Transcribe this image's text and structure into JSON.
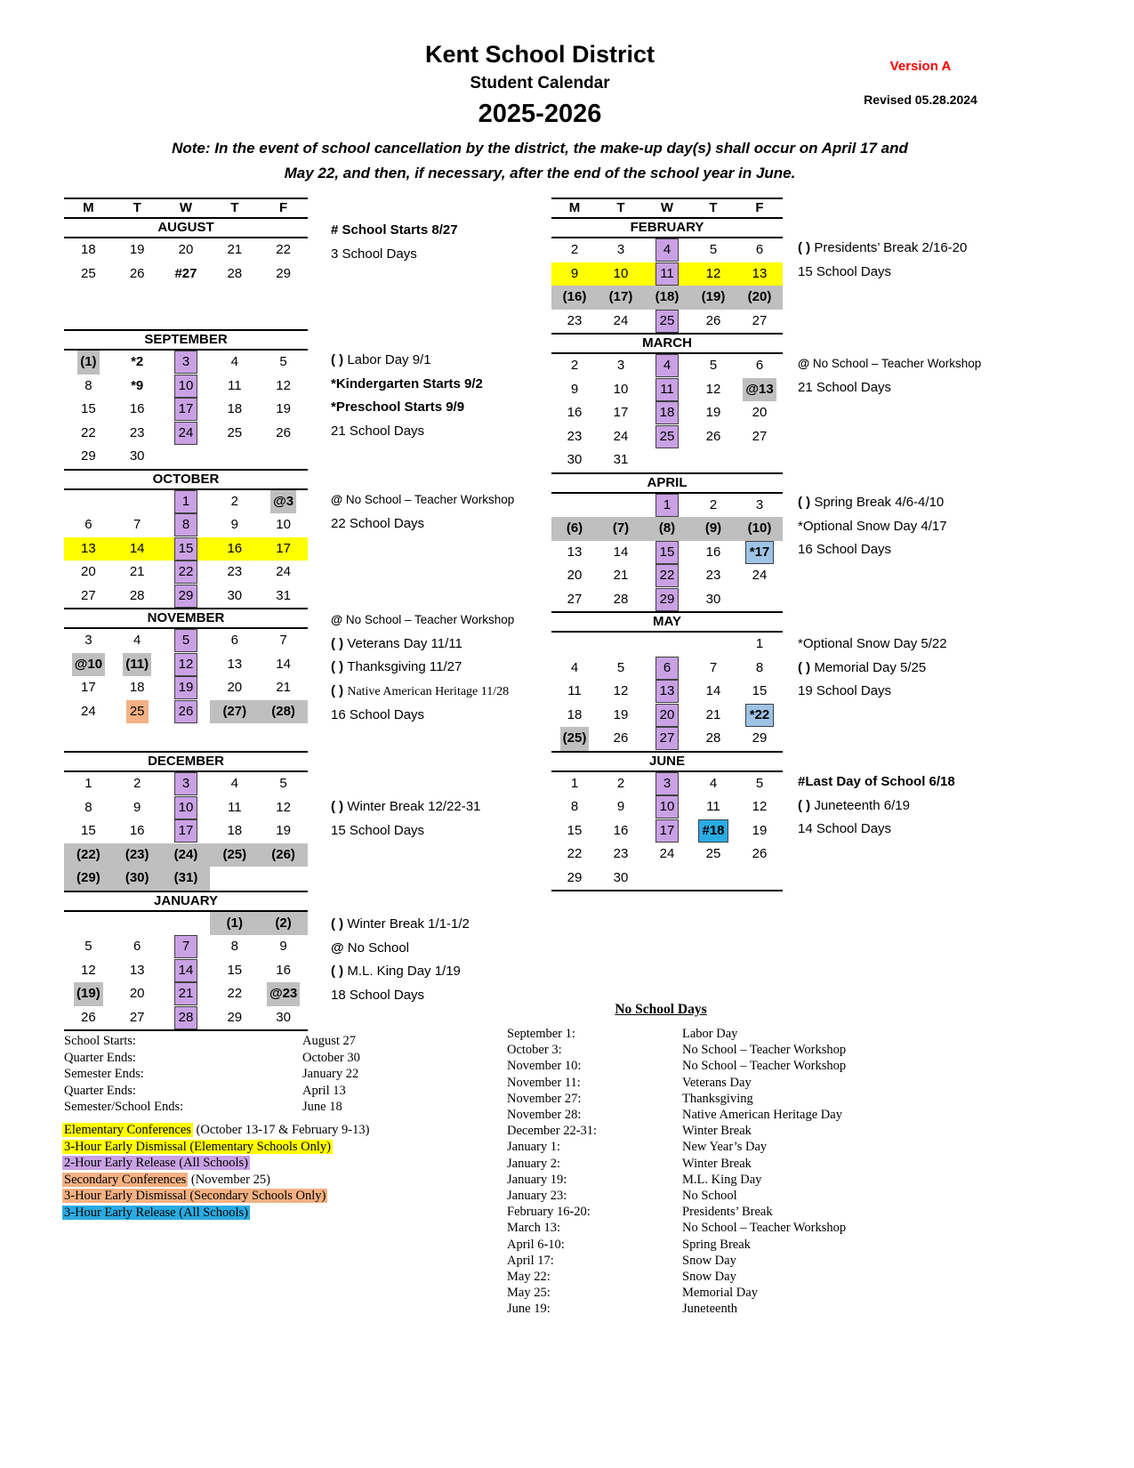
{
  "header": {
    "district": "Kent School District",
    "subtitle": "Student Calendar",
    "year": "2025-2026",
    "version": "Version A",
    "revised": "Revised 05.28.2024",
    "note_line1": "Note: In the event of school cancellation by the district, the make-up day(s) shall occur on April 17 and",
    "note_line2": "May 22, and then, if necessary, after the end of the school year in June."
  },
  "colors": {
    "purple_2hr_early_release": "#C9A1E4",
    "yellow_elementary_conferences": "#FFFF00",
    "gray_no_school": "#BFBFBF",
    "orange_secondary_conferences": "#F4B183",
    "lightblue_3hr_early_release_snowday": "#9DC3E6",
    "blue_3hr_early_release": "#29ABE2",
    "version_red": "#FF0000"
  },
  "weekday_headers": [
    "M",
    "T",
    "W",
    "T",
    "F"
  ],
  "months": [
    {
      "id": "august",
      "name": "AUGUST",
      "rows": [
        [
          "18",
          "19",
          "20",
          "21",
          "22"
        ],
        [
          "25",
          "26",
          {
            "t": "#27",
            "c": "bold"
          },
          "28",
          "29"
        ]
      ]
    },
    {
      "id": "september",
      "name": "SEPTEMBER",
      "rows": [
        [
          {
            "t": "(1)",
            "c": "gray"
          },
          {
            "t": "*2",
            "c": "bold"
          },
          {
            "t": "3",
            "c": "purple"
          },
          "4",
          "5"
        ],
        [
          "8",
          {
            "t": "*9",
            "c": "bold"
          },
          {
            "t": "10",
            "c": "purple"
          },
          "11",
          "12"
        ],
        [
          "15",
          "16",
          {
            "t": "17",
            "c": "purple"
          },
          "18",
          "19"
        ],
        [
          "22",
          "23",
          {
            "t": "24",
            "c": "purple"
          },
          "25",
          "26"
        ],
        [
          "29",
          "30",
          null,
          null,
          null
        ]
      ]
    },
    {
      "id": "october",
      "name": "OCTOBER",
      "rows": [
        [
          null,
          null,
          {
            "t": "1",
            "c": "purple"
          },
          "2",
          {
            "t": "@3",
            "c": "gray"
          }
        ],
        [
          "6",
          "7",
          {
            "t": "8",
            "c": "purple"
          },
          "9",
          "10"
        ],
        {
          "rc": "yellow",
          "cells": [
            "13",
            "14",
            {
              "t": "15",
              "c": "purple"
            },
            "16",
            "17"
          ]
        },
        [
          "20",
          "21",
          {
            "t": "22",
            "c": "purple"
          },
          "23",
          "24"
        ],
        [
          "27",
          "28",
          {
            "t": "29",
            "c": "purple"
          },
          "30",
          "31"
        ]
      ]
    },
    {
      "id": "november",
      "name": "NOVEMBER",
      "rows": [
        [
          "3",
          "4",
          {
            "t": "5",
            "c": "purple"
          },
          "6",
          "7"
        ],
        [
          {
            "t": "@10",
            "c": "gray"
          },
          {
            "t": "(11)",
            "c": "gray"
          },
          {
            "t": "12",
            "c": "purple"
          },
          "13",
          "14"
        ],
        [
          "17",
          "18",
          {
            "t": "19",
            "c": "purple"
          },
          "20",
          "21"
        ],
        [
          "24",
          {
            "t": "25",
            "c": "orange"
          },
          {
            "t": "26",
            "c": "purple"
          },
          {
            "t": "(27)",
            "c": "gfill"
          },
          {
            "t": "(28)",
            "c": "gfill"
          }
        ]
      ]
    },
    {
      "id": "december",
      "name": "DECEMBER",
      "rows": [
        [
          "1",
          "2",
          {
            "t": "3",
            "c": "purple"
          },
          "4",
          "5"
        ],
        [
          "8",
          "9",
          {
            "t": "10",
            "c": "purple"
          },
          "11",
          "12"
        ],
        [
          "15",
          "16",
          {
            "t": "17",
            "c": "purple"
          },
          "18",
          "19"
        ],
        [
          {
            "t": "(22)",
            "c": "gfill"
          },
          {
            "t": "(23)",
            "c": "gfill"
          },
          {
            "t": "(24)",
            "c": "gfill"
          },
          {
            "t": "(25)",
            "c": "gfill"
          },
          {
            "t": "(26)",
            "c": "gfill"
          }
        ],
        [
          {
            "t": "(29)",
            "c": "gfill"
          },
          {
            "t": "(30)",
            "c": "gfill"
          },
          {
            "t": "(31)",
            "c": "gfill"
          },
          null,
          null
        ]
      ]
    },
    {
      "id": "january",
      "name": "JANUARY",
      "closed": true,
      "rows": [
        [
          null,
          null,
          null,
          {
            "t": "(1)",
            "c": "gfill"
          },
          {
            "t": "(2)",
            "c": "gfill"
          }
        ],
        [
          "5",
          "6",
          {
            "t": "7",
            "c": "purple"
          },
          "8",
          "9"
        ],
        [
          "12",
          "13",
          {
            "t": "14",
            "c": "purple"
          },
          "15",
          "16"
        ],
        [
          {
            "t": "(19)",
            "c": "gray"
          },
          "20",
          {
            "t": "21",
            "c": "purple"
          },
          "22",
          {
            "t": "@23",
            "c": "gray"
          }
        ],
        [
          "26",
          "27",
          {
            "t": "28",
            "c": "purple"
          },
          "29",
          "30"
        ]
      ]
    },
    {
      "id": "february",
      "name": "FEBRUARY",
      "rows": [
        [
          "2",
          "3",
          {
            "t": "4",
            "c": "purple"
          },
          "5",
          "6"
        ],
        {
          "rc": "yellow",
          "cells": [
            "9",
            "10",
            {
              "t": "11",
              "c": "purple"
            },
            "12",
            "13"
          ]
        },
        [
          {
            "t": "(16)",
            "c": "gfill"
          },
          {
            "t": "(17)",
            "c": "gfill"
          },
          {
            "t": "(18)",
            "c": "gfill"
          },
          {
            "t": "(19)",
            "c": "gfill"
          },
          {
            "t": "(20)",
            "c": "gfill"
          }
        ],
        [
          "23",
          "24",
          {
            "t": "25",
            "c": "purple"
          },
          "26",
          "27"
        ]
      ]
    },
    {
      "id": "march",
      "name": "MARCH",
      "rows": [
        [
          "2",
          "3",
          {
            "t": "4",
            "c": "purple"
          },
          "5",
          "6"
        ],
        [
          "9",
          "10",
          {
            "t": "11",
            "c": "purple"
          },
          "12",
          {
            "t": "@13",
            "c": "gray"
          }
        ],
        [
          "16",
          "17",
          {
            "t": "18",
            "c": "purple"
          },
          "19",
          "20"
        ],
        [
          "23",
          "24",
          {
            "t": "25",
            "c": "purple"
          },
          "26",
          "27"
        ],
        [
          "30",
          "31",
          null,
          null,
          null
        ]
      ]
    },
    {
      "id": "april",
      "name": "APRIL",
      "rows": [
        [
          null,
          null,
          {
            "t": "1",
            "c": "purple"
          },
          "2",
          "3"
        ],
        [
          {
            "t": "(6)",
            "c": "gfill"
          },
          {
            "t": "(7)",
            "c": "gfill"
          },
          {
            "t": "(8)",
            "c": "gfill"
          },
          {
            "t": "(9)",
            "c": "gfill"
          },
          {
            "t": "(10)",
            "c": "gfill"
          }
        ],
        [
          "13",
          "14",
          {
            "t": "15",
            "c": "purple"
          },
          "16",
          {
            "t": "*17",
            "c": "lblue"
          }
        ],
        [
          "20",
          "21",
          {
            "t": "22",
            "c": "purple"
          },
          "23",
          "24"
        ],
        [
          "27",
          "28",
          {
            "t": "29",
            "c": "purple"
          },
          "30",
          null
        ]
      ]
    },
    {
      "id": "may",
      "name": "MAY",
      "rows": [
        [
          null,
          null,
          null,
          null,
          "1"
        ],
        [
          "4",
          "5",
          {
            "t": "6",
            "c": "purple"
          },
          "7",
          "8"
        ],
        [
          "11",
          "12",
          {
            "t": "13",
            "c": "purple"
          },
          "14",
          "15"
        ],
        [
          "18",
          "19",
          {
            "t": "20",
            "c": "purple"
          },
          "21",
          {
            "t": "*22",
            "c": "lblue"
          }
        ],
        [
          {
            "t": "(25)",
            "c": "gray"
          },
          "26",
          {
            "t": "27",
            "c": "purple"
          },
          "28",
          "29"
        ]
      ]
    },
    {
      "id": "june",
      "name": "JUNE",
      "closed": true,
      "rows": [
        [
          "1",
          "2",
          {
            "t": "3",
            "c": "purple"
          },
          "4",
          "5"
        ],
        [
          "8",
          "9",
          {
            "t": "10",
            "c": "purple"
          },
          "11",
          "12"
        ],
        [
          "15",
          "16",
          {
            "t": "17",
            "c": "purple"
          },
          {
            "t": "#18",
            "c": "blue"
          },
          "19"
        ],
        [
          "22",
          "23",
          "24",
          "25",
          "26"
        ],
        [
          "29",
          "30",
          null,
          null,
          null
        ]
      ]
    }
  ],
  "notes": [
    {
      "month": "august",
      "lines": [
        {
          "text": "# School Starts 8/27",
          "cls": "bold"
        },
        {
          "text": "3 School Days"
        }
      ]
    },
    {
      "month": "september",
      "lines": [
        {
          "pre": "( ) ",
          "text": "Labor Day 9/1"
        },
        {
          "text": "*Kindergarten Starts 9/2",
          "cls": "bold"
        },
        {
          "text": "*Preschool Starts 9/9",
          "cls": "bold"
        },
        {
          "text": "21 School Days"
        }
      ]
    },
    {
      "month": "october",
      "lines": [
        {
          "pre": "@ ",
          "text": "No School – Teacher Workshop",
          "cls": "small"
        },
        {
          "text": "22 School Days"
        }
      ]
    },
    {
      "month": "november",
      "lines": [
        {
          "pre": "@ ",
          "text": "No School – Teacher Workshop",
          "cls": "small"
        },
        {
          "pre": "( ) ",
          "text": "Veterans Day 11/11"
        },
        {
          "pre": "( ) ",
          "text": "Thanksgiving 11/27"
        },
        {
          "pre": "( ) ",
          "text": "Native American Heritage 11/28",
          "cls": "serif"
        },
        {
          "text": "16 School Days"
        }
      ]
    },
    {
      "month": "december",
      "lines": [
        {
          "pre": "( ) ",
          "text": "Winter Break 12/22-31"
        },
        {
          "text": "15 School Days"
        }
      ]
    },
    {
      "month": "january",
      "lines": [
        {
          "pre": "( ) ",
          "text": "Winter Break 1/1-1/2"
        },
        {
          "pre": "@ ",
          "text": "No School"
        },
        {
          "pre": "( ) ",
          "text": "M.L. King Day 1/19"
        },
        {
          "text": "18 School Days"
        }
      ]
    },
    {
      "month": "february",
      "lines": [
        {
          "pre": "( ) ",
          "text": "Presidents’ Break 2/16-20"
        },
        {
          "text": "15 School Days"
        }
      ]
    },
    {
      "month": "march",
      "lines": [
        {
          "pre": "@ ",
          "text": "No School – Teacher Workshop",
          "cls": "small"
        },
        {
          "text": "21 School Days"
        }
      ]
    },
    {
      "month": "april",
      "lines": [
        {
          "pre": "( ) ",
          "text": "Spring Break 4/6-4/10"
        },
        {
          "text": "*Optional Snow Day 4/17"
        },
        {
          "text": "16 School Days"
        }
      ]
    },
    {
      "month": "may",
      "lines": [
        {
          "text": "*Optional Snow Day 5/22"
        },
        {
          "pre": "( ) ",
          "text": "Memorial Day 5/25"
        },
        {
          "text": "19 School Days"
        }
      ]
    },
    {
      "month": "june",
      "lines": [
        {
          "text": "#Last Day of School 6/18",
          "cls": "bold"
        },
        {
          "pre": "( ) ",
          "text": "Juneteenth 6/19"
        },
        {
          "text": "14 School Days"
        }
      ]
    }
  ],
  "key_dates": [
    {
      "label": "School Starts:",
      "value": "August 27"
    },
    {
      "label": "Quarter Ends:",
      "value": "October 30"
    },
    {
      "label": "Semester Ends:",
      "value": "January 22"
    },
    {
      "label": "Quarter Ends:",
      "value": "April 13"
    },
    {
      "label": "Semester/School Ends:",
      "value": "June 18"
    }
  ],
  "legend": [
    {
      "text": "Elementary Conferences",
      "hl": "yellow",
      "suffix": " (October 13-17 & February 9-13)"
    },
    {
      "text": "3-Hour Early Dismissal (Elementary Schools Only)",
      "hl": "yellow"
    },
    {
      "text": "2-Hour Early Release (All Schools)",
      "hl": "purple"
    },
    {
      "text": "Secondary Conferences",
      "hl": "orange",
      "suffix": " (November 25)"
    },
    {
      "text": "3-Hour Early Dismissal (Secondary Schools Only)",
      "hl": "orange"
    },
    {
      "text": "3-Hour Early Release (All Schools)",
      "hl": "blue"
    }
  ],
  "no_school_days": {
    "title": "No School Days",
    "rows": [
      {
        "date": "September 1:",
        "desc": "Labor Day"
      },
      {
        "date": "October 3:",
        "desc": "No School – Teacher Workshop"
      },
      {
        "date": "November 10:",
        "desc": "No School – Teacher Workshop"
      },
      {
        "date": "November 11:",
        "desc": "Veterans Day"
      },
      {
        "date": "November 27:",
        "desc": "Thanksgiving"
      },
      {
        "date": "November 28:",
        "desc": "Native American Heritage Day"
      },
      {
        "date": "December 22-31:",
        "desc": "Winter Break"
      },
      {
        "date": "January 1:",
        "desc": "New Year’s Day"
      },
      {
        "date": "January 2:",
        "desc": "Winter Break"
      },
      {
        "date": "January 19:",
        "desc": "M.L. King Day"
      },
      {
        "date": "January 23:",
        "desc": "No School"
      },
      {
        "date": "February 16-20:",
        "desc": "Presidents’ Break"
      },
      {
        "date": "March 13:",
        "desc": "No School – Teacher Workshop"
      },
      {
        "date": "April 6-10:",
        "desc": "Spring Break"
      },
      {
        "date": "April 17:",
        "desc": "Snow Day"
      },
      {
        "date": "May 22:",
        "desc": "Snow Day"
      },
      {
        "date": "May 25:",
        "desc": "Memorial Day"
      },
      {
        "date": "June 19:",
        "desc": "Juneteenth"
      }
    ]
  }
}
